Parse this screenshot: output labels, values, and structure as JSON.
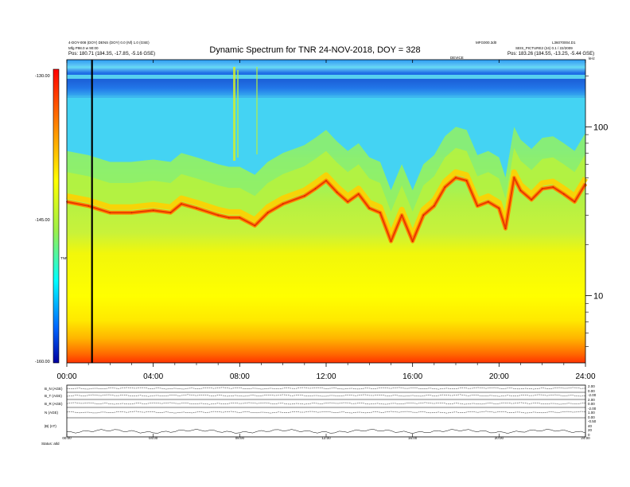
{
  "header": {
    "title": "Dynamic Spectrum for TNR 24-NOV-2018, DOY = 328",
    "top_left_line1": "4-DOY-008 (DOY) DENS (DOY) 0.0 (Nf) 1.0 (GSE)",
    "top_left_line2": "Mfg P98.0 w 90:00",
    "top_left_line3": "Pos:   180.71 (184.3S, -17.8S, -5.16 GSE)",
    "top_right_line1": "L36070004.D1",
    "top_right_line2": "SEIS_PICTURE2 (24) 0.1 / 22/2009",
    "top_right_line3": "Pos:   183.26 (184.5S, -13.2S, -5.44 GSE)",
    "top_mid_right": "MFG000.3d0",
    "center_marker": "DEVICE",
    "right_unit": "kHz",
    "colorbar_unit": "TNR"
  },
  "colorbar": {
    "top_label": "-130.00",
    "mid_label": "-145.00",
    "bottom_label": "-160.00"
  },
  "bottom_panel": {
    "row_labels": [
      "B_N (AGE)",
      "B_T (AGE)",
      "B_R (AGE)",
      "N (AGE)",
      "|B| (nT)"
    ],
    "right_labels": [
      "2.00",
      "0.00",
      "-2.00",
      "2.00",
      "0.00",
      "-2.00",
      "1.00",
      "0.00",
      "-0.50",
      "40",
      "20",
      "0"
    ],
    "footer_label": "Status:   atld"
  },
  "chart_data": {
    "type": "heatmap",
    "title": "Dynamic Spectrum for TNR 24-NOV-2018, DOY = 328",
    "x_ticks": [
      "00:00",
      "04:00",
      "08:00",
      "12:00",
      "16:00",
      "20:00",
      "24:00"
    ],
    "x_range_hours": [
      0,
      24
    ],
    "y_scale": "log",
    "y_ticks": [
      "100",
      "10"
    ],
    "y_range_khz": [
      4,
      250
    ],
    "colorbar_range_db": [
      -160,
      -130
    ],
    "cursor_time": "01:10",
    "bottom_x_ticks": [
      "00:00",
      "04:00",
      "08:00",
      "12:00",
      "16:00",
      "20:00",
      "24:00"
    ],
    "plasma_line_khz": [
      {
        "t": 0.0,
        "f": 36
      },
      {
        "t": 1.0,
        "f": 34
      },
      {
        "t": 2.0,
        "f": 31
      },
      {
        "t": 3.0,
        "f": 31
      },
      {
        "t": 4.0,
        "f": 32
      },
      {
        "t": 4.8,
        "f": 31
      },
      {
        "t": 5.3,
        "f": 35
      },
      {
        "t": 6.0,
        "f": 33
      },
      {
        "t": 7.0,
        "f": 30
      },
      {
        "t": 7.5,
        "f": 29
      },
      {
        "t": 8.0,
        "f": 29
      },
      {
        "t": 8.7,
        "f": 26
      },
      {
        "t": 9.3,
        "f": 31
      },
      {
        "t": 10.0,
        "f": 35
      },
      {
        "t": 11.0,
        "f": 39
      },
      {
        "t": 11.5,
        "f": 43
      },
      {
        "t": 12.0,
        "f": 48
      },
      {
        "t": 12.5,
        "f": 41
      },
      {
        "t": 13.0,
        "f": 36
      },
      {
        "t": 13.5,
        "f": 40
      },
      {
        "t": 14.0,
        "f": 33
      },
      {
        "t": 14.5,
        "f": 31
      },
      {
        "t": 15.0,
        "f": 21
      },
      {
        "t": 15.5,
        "f": 30
      },
      {
        "t": 16.0,
        "f": 21
      },
      {
        "t": 16.5,
        "f": 30
      },
      {
        "t": 17.0,
        "f": 34
      },
      {
        "t": 17.5,
        "f": 44
      },
      {
        "t": 18.0,
        "f": 50
      },
      {
        "t": 18.5,
        "f": 48
      },
      {
        "t": 19.0,
        "f": 34
      },
      {
        "t": 19.5,
        "f": 36
      },
      {
        "t": 20.0,
        "f": 33
      },
      {
        "t": 20.3,
        "f": 25
      },
      {
        "t": 20.7,
        "f": 50
      },
      {
        "t": 21.0,
        "f": 42
      },
      {
        "t": 21.5,
        "f": 37
      },
      {
        "t": 22.0,
        "f": 43
      },
      {
        "t": 22.5,
        "f": 44
      },
      {
        "t": 23.0,
        "f": 40
      },
      {
        "t": 23.5,
        "f": 36
      },
      {
        "t": 24.0,
        "f": 46
      }
    ]
  }
}
